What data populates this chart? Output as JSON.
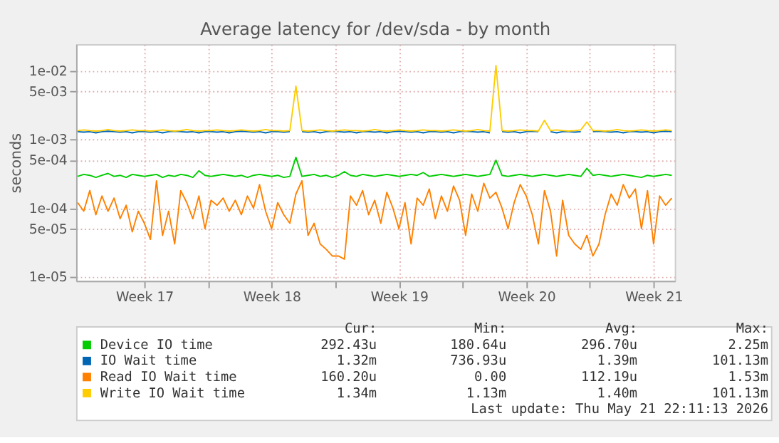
{
  "chart_data": {
    "type": "line",
    "title": "Average latency for /dev/sda - by month",
    "ylabel": "seconds",
    "log": "y",
    "grid": true,
    "legend": "bottom",
    "xlim": [
      "2026-04-19T18:00",
      "2026-05-22T16:00"
    ],
    "xticks": [
      {
        "value": "2026-04-23T12:00",
        "label": "Week 17"
      },
      {
        "value": "2026-04-27T00:00",
        "label": null
      },
      {
        "value": "2026-04-30T12:00",
        "label": "Week 18"
      },
      {
        "value": "2026-05-04T00:00",
        "label": null
      },
      {
        "value": "2026-05-07T12:00",
        "label": "Week 19"
      },
      {
        "value": "2026-05-11T00:00",
        "label": null
      },
      {
        "value": "2026-05-14T12:00",
        "label": "Week 20"
      },
      {
        "value": "2026-05-18T00:00",
        "label": null
      },
      {
        "value": "2026-05-21T12:00",
        "label": "Week 21"
      }
    ],
    "ylim": [
      8.7e-06,
      0.0245
    ],
    "yticks": [
      {
        "value": 1e-05,
        "label": "1e-05"
      },
      {
        "value": 5e-05,
        "label": "5e-05"
      },
      {
        "value": 0.0001,
        "label": "1e-04"
      },
      {
        "value": 0.0005,
        "label": "5e-04"
      },
      {
        "value": 0.001,
        "label": "1e-03"
      },
      {
        "value": 0.005,
        "label": "5e-03"
      },
      {
        "value": 0.01,
        "label": "1e-02"
      }
    ],
    "x": [
      "2026-04-19T20:00",
      "2026-04-20T04:00",
      "2026-04-20T12:00",
      "2026-04-20T20:00",
      "2026-04-21T04:00",
      "2026-04-21T12:00",
      "2026-04-21T20:00",
      "2026-04-22T04:00",
      "2026-04-22T12:00",
      "2026-04-22T20:00",
      "2026-04-23T04:00",
      "2026-04-23T12:00",
      "2026-04-23T20:00",
      "2026-04-24T04:00",
      "2026-04-24T12:00",
      "2026-04-24T20:00",
      "2026-04-25T04:00",
      "2026-04-25T12:00",
      "2026-04-25T20:00",
      "2026-04-26T04:00",
      "2026-04-26T12:00",
      "2026-04-26T20:00",
      "2026-04-27T04:00",
      "2026-04-27T12:00",
      "2026-04-27T20:00",
      "2026-04-28T04:00",
      "2026-04-28T12:00",
      "2026-04-28T20:00",
      "2026-04-29T04:00",
      "2026-04-29T12:00",
      "2026-04-29T20:00",
      "2026-04-30T04:00",
      "2026-04-30T12:00",
      "2026-04-30T20:00",
      "2026-05-01T04:00",
      "2026-05-01T12:00",
      "2026-05-01T20:00",
      "2026-05-02T04:00",
      "2026-05-02T12:00",
      "2026-05-02T20:00",
      "2026-05-03T04:00",
      "2026-05-03T12:00",
      "2026-05-03T20:00",
      "2026-05-04T04:00",
      "2026-05-04T12:00",
      "2026-05-04T20:00",
      "2026-05-05T04:00",
      "2026-05-05T12:00",
      "2026-05-05T20:00",
      "2026-05-06T04:00",
      "2026-05-06T12:00",
      "2026-05-06T20:00",
      "2026-05-07T04:00",
      "2026-05-07T12:00",
      "2026-05-07T20:00",
      "2026-05-08T04:00",
      "2026-05-08T12:00",
      "2026-05-08T20:00",
      "2026-05-09T04:00",
      "2026-05-09T12:00",
      "2026-05-09T20:00",
      "2026-05-10T04:00",
      "2026-05-10T12:00",
      "2026-05-10T20:00",
      "2026-05-11T04:00",
      "2026-05-11T12:00",
      "2026-05-11T20:00",
      "2026-05-12T04:00",
      "2026-05-12T12:00",
      "2026-05-12T20:00",
      "2026-05-13T04:00",
      "2026-05-13T12:00",
      "2026-05-13T20:00",
      "2026-05-14T04:00",
      "2026-05-14T12:00",
      "2026-05-14T20:00",
      "2026-05-15T04:00",
      "2026-05-15T12:00",
      "2026-05-15T20:00",
      "2026-05-16T04:00",
      "2026-05-16T12:00",
      "2026-05-16T20:00",
      "2026-05-17T04:00",
      "2026-05-17T12:00",
      "2026-05-17T20:00",
      "2026-05-18T04:00",
      "2026-05-18T12:00",
      "2026-05-18T20:00",
      "2026-05-19T04:00",
      "2026-05-19T12:00",
      "2026-05-19T20:00",
      "2026-05-20T04:00",
      "2026-05-20T12:00",
      "2026-05-20T20:00",
      "2026-05-21T04:00",
      "2026-05-21T12:00",
      "2026-05-21T20:00",
      "2026-05-22T04:00",
      "2026-05-22T12:00"
    ],
    "series": [
      {
        "name": "Device IO time",
        "color": "#00cc00",
        "values": [
          0.00029,
          0.00031,
          0.0003,
          0.00028,
          0.0003,
          0.00032,
          0.00029,
          0.0003,
          0.00028,
          0.00031,
          0.0003,
          0.00029,
          0.0003,
          0.00031,
          0.00028,
          0.0003,
          0.00029,
          0.00031,
          0.0003,
          0.00028,
          0.00035,
          0.0003,
          0.00029,
          0.0003,
          0.00031,
          0.0003,
          0.00029,
          0.0003,
          0.00028,
          0.0003,
          0.00031,
          0.0003,
          0.00029,
          0.0003,
          0.00028,
          0.00029,
          0.00055,
          0.00029,
          0.0003,
          0.00031,
          0.00029,
          0.0003,
          0.00028,
          0.0003,
          0.00034,
          0.0003,
          0.00029,
          0.00031,
          0.0003,
          0.00029,
          0.0003,
          0.00031,
          0.0003,
          0.00029,
          0.0003,
          0.00031,
          0.0003,
          0.00033,
          0.00029,
          0.0003,
          0.00031,
          0.0003,
          0.00029,
          0.0003,
          0.00031,
          0.0003,
          0.00029,
          0.0003,
          0.00031,
          0.0005,
          0.0003,
          0.00029,
          0.0003,
          0.00031,
          0.0003,
          0.00029,
          0.0003,
          0.00031,
          0.0003,
          0.00029,
          0.0003,
          0.00031,
          0.0003,
          0.00029,
          0.00038,
          0.0003,
          0.00031,
          0.0003,
          0.00029,
          0.0003,
          0.00031,
          0.0003,
          0.00029,
          0.00028,
          0.0003,
          0.00029,
          0.0003,
          0.00031,
          0.0003
        ]
      },
      {
        "name": "IO Wait time",
        "color": "#0066b3",
        "values": [
          0.0013,
          0.00128,
          0.0013,
          0.00125,
          0.0013,
          0.00132,
          0.0013,
          0.00128,
          0.0013,
          0.00125,
          0.0013,
          0.0013,
          0.00128,
          0.0013,
          0.00125,
          0.0013,
          0.00132,
          0.0013,
          0.00128,
          0.0013,
          0.00125,
          0.0013,
          0.0013,
          0.00128,
          0.0013,
          0.00125,
          0.0013,
          0.00132,
          0.0013,
          0.00128,
          0.0013,
          0.00125,
          0.0013,
          0.0013,
          0.00128,
          0.0013,
          null,
          0.0013,
          0.00128,
          0.0013,
          0.00125,
          0.0013,
          0.00132,
          0.0013,
          0.00128,
          0.0013,
          0.00125,
          0.0013,
          0.0013,
          0.00128,
          0.0013,
          0.00125,
          0.0013,
          0.00132,
          0.0013,
          0.00128,
          0.0013,
          0.00125,
          0.0013,
          0.0013,
          0.00128,
          0.0013,
          0.00125,
          0.0013,
          0.00132,
          0.0013,
          0.00128,
          0.0013,
          0.00125,
          null,
          0.0013,
          0.00128,
          0.0013,
          0.00125,
          0.0013,
          0.00132,
          0.0013,
          null,
          0.0013,
          0.00125,
          0.0013,
          0.0013,
          0.00128,
          0.0013,
          null,
          0.0013,
          0.00132,
          0.0013,
          0.00128,
          0.0013,
          0.00125,
          0.0013,
          0.0013,
          0.00128,
          0.0013,
          0.00125,
          0.0013,
          0.00132,
          0.0013
        ]
      },
      {
        "name": "Read IO Wait time",
        "color": "#ff8000",
        "values": [
          0.00012,
          9e-05,
          0.00018,
          8e-05,
          0.00015,
          9e-05,
          0.00014,
          7e-05,
          0.00011,
          4.5e-05,
          9e-05,
          6e-05,
          3.5e-05,
          0.00025,
          4e-05,
          9e-05,
          3e-05,
          0.00018,
          0.00012,
          7e-05,
          0.00015,
          5e-05,
          0.00013,
          0.00011,
          0.00014,
          9e-05,
          0.00013,
          8e-05,
          0.00015,
          0.0001,
          0.00022,
          9e-05,
          5e-05,
          0.00012,
          8e-05,
          6e-05,
          0.00016,
          0.00025,
          4e-05,
          6e-05,
          3e-05,
          2.5e-05,
          2e-05,
          2e-05,
          1.8e-05,
          0.00015,
          0.00011,
          0.00018,
          8e-05,
          0.00013,
          6e-05,
          0.00017,
          0.0001,
          5e-05,
          0.00012,
          3e-05,
          0.00014,
          0.00011,
          0.00019,
          7e-05,
          0.00015,
          9e-05,
          0.00021,
          0.00013,
          4e-05,
          0.00016,
          9e-05,
          0.00023,
          0.00014,
          0.00017,
          0.0001,
          5e-05,
          0.00012,
          0.00022,
          0.00015,
          8e-05,
          3e-05,
          0.00018,
          9e-05,
          2e-05,
          0.00013,
          4e-05,
          3e-05,
          2.5e-05,
          4e-05,
          2e-05,
          3e-05,
          8e-05,
          0.00016,
          0.00011,
          0.00022,
          0.00014,
          0.00019,
          5e-05,
          0.00018,
          3e-05,
          0.00015,
          0.00011,
          0.00014
        ]
      },
      {
        "name": "Write IO Wait time",
        "color": "#ffcc00",
        "values": [
          0.00135,
          0.00138,
          0.00135,
          0.00133,
          0.00135,
          0.0014,
          0.00135,
          0.00133,
          0.00135,
          0.00138,
          0.00135,
          0.00135,
          0.00133,
          0.00135,
          0.00138,
          0.00135,
          0.00133,
          0.00135,
          0.0014,
          0.00135,
          0.00133,
          0.00135,
          0.00135,
          0.00138,
          0.00135,
          0.00133,
          0.00135,
          0.00138,
          0.00135,
          0.00133,
          0.00135,
          0.0014,
          0.00135,
          0.00135,
          0.00133,
          0.00135,
          0.006,
          0.00135,
          0.00133,
          0.00135,
          0.00138,
          0.00135,
          0.00133,
          0.00135,
          0.00138,
          0.00135,
          0.00135,
          0.00133,
          0.00135,
          0.0014,
          0.00135,
          0.00133,
          0.00135,
          0.00138,
          0.00135,
          0.00133,
          0.00135,
          0.00138,
          0.00135,
          0.00135,
          0.00133,
          0.00135,
          0.00138,
          0.00135,
          0.00133,
          0.00135,
          0.0014,
          0.00135,
          0.00133,
          0.012,
          0.00135,
          0.00133,
          0.00135,
          0.00138,
          0.00135,
          0.00135,
          0.00133,
          0.0019,
          0.00135,
          0.00138,
          0.00135,
          0.00133,
          0.00135,
          0.00138,
          0.0018,
          0.00135,
          0.00135,
          0.00133,
          0.00135,
          0.0014,
          0.00135,
          0.00133,
          0.00135,
          0.00138,
          0.00135,
          0.00133,
          0.00135,
          0.00138,
          0.00135
        ]
      }
    ],
    "annotations": [
      "Cur:",
      "Min:",
      "Avg:",
      "Max:",
      "292.43u",
      "180.64u",
      "296.70u",
      "2.25m",
      "1.32m",
      "736.93u",
      "1.39m",
      "101.13m",
      "160.20u",
      "0.00",
      "112.19u",
      "1.53m",
      "1.34m",
      "1.13m",
      "1.40m",
      "101.13m",
      "Last update: Thu May 21 22:11:13 2026"
    ]
  }
}
